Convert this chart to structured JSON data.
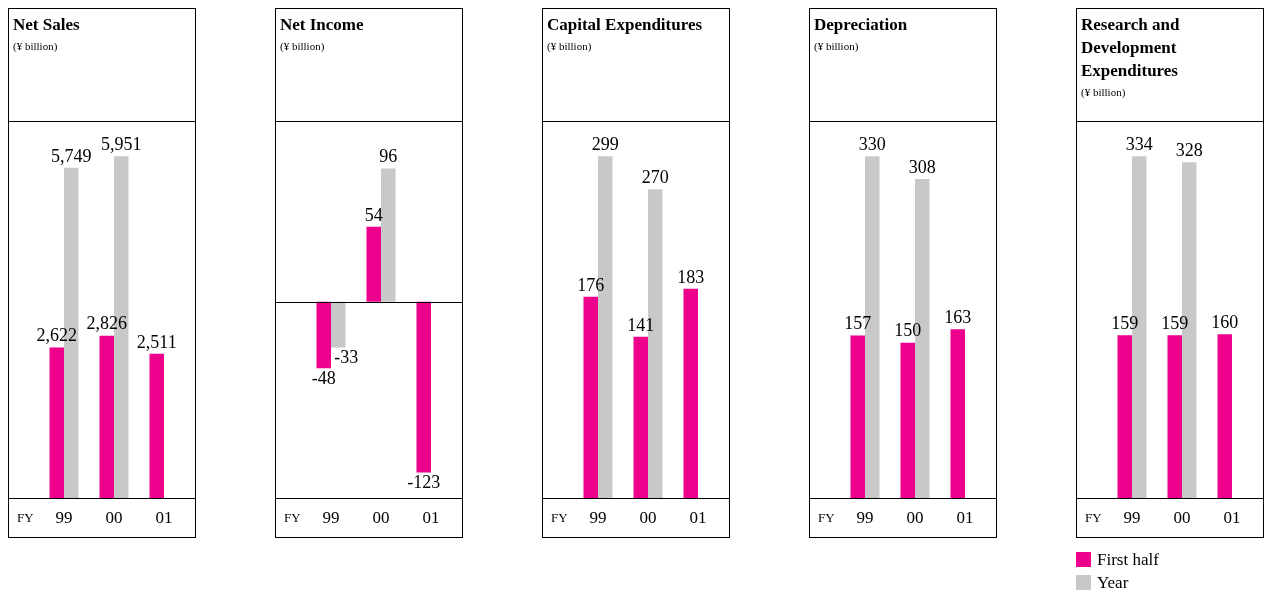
{
  "chart_data": [
    {
      "type": "bar",
      "title": "Net Sales",
      "subtitle": "(¥ billion)",
      "xlabel": "FY",
      "categories": [
        "99",
        "00",
        "01"
      ],
      "data_labels": true,
      "grid": false,
      "legend": false,
      "series": [
        {
          "color": "#ec008c",
          "values": [
            2622,
            2826,
            2511
          ],
          "value_labels": [
            "2,622",
            "2,826",
            "2,511"
          ]
        },
        {
          "color": "#c8c8c8",
          "values": [
            5749,
            5951,
            null
          ],
          "value_labels": [
            "5,749",
            "5,951",
            null
          ]
        }
      ]
    },
    {
      "type": "bar",
      "title": "Net Income",
      "subtitle": "(¥ billion)",
      "xlabel": "FY",
      "categories": [
        "99",
        "00",
        "01"
      ],
      "data_labels": true,
      "grid": false,
      "legend": false,
      "series": [
        {
          "color": "#ec008c",
          "values": [
            -48,
            54,
            -123
          ]
        },
        {
          "color": "#c8c8c8",
          "values": [
            -33,
            96,
            null
          ]
        }
      ]
    },
    {
      "type": "bar",
      "title": "Capital Expenditures",
      "subtitle": "(¥ billion)",
      "xlabel": "FY",
      "categories": [
        "99",
        "00",
        "01"
      ],
      "data_labels": true,
      "grid": false,
      "legend": false,
      "series": [
        {
          "color": "#ec008c",
          "values": [
            176,
            141,
            183
          ]
        },
        {
          "color": "#c8c8c8",
          "values": [
            299,
            270,
            null
          ]
        }
      ]
    },
    {
      "type": "bar",
      "title": "Depreciation",
      "subtitle": "(¥ billion)",
      "xlabel": "FY",
      "categories": [
        "99",
        "00",
        "01"
      ],
      "data_labels": true,
      "grid": false,
      "legend": false,
      "series": [
        {
          "color": "#ec008c",
          "values": [
            157,
            150,
            163
          ]
        },
        {
          "color": "#c8c8c8",
          "values": [
            330,
            308,
            null
          ]
        }
      ]
    },
    {
      "type": "bar",
      "title": "Research and Development Expenditures",
      "subtitle": "(¥ billion)",
      "xlabel": "FY",
      "categories": [
        "99",
        "00",
        "01"
      ],
      "data_labels": true,
      "grid": false,
      "legend": "bottom",
      "series": [
        {
          "name": "First half",
          "color": "#ec008c",
          "values": [
            159,
            159,
            160
          ]
        },
        {
          "name": "Year",
          "color": "#c8c8c8",
          "values": [
            334,
            328,
            null
          ]
        }
      ]
    }
  ]
}
